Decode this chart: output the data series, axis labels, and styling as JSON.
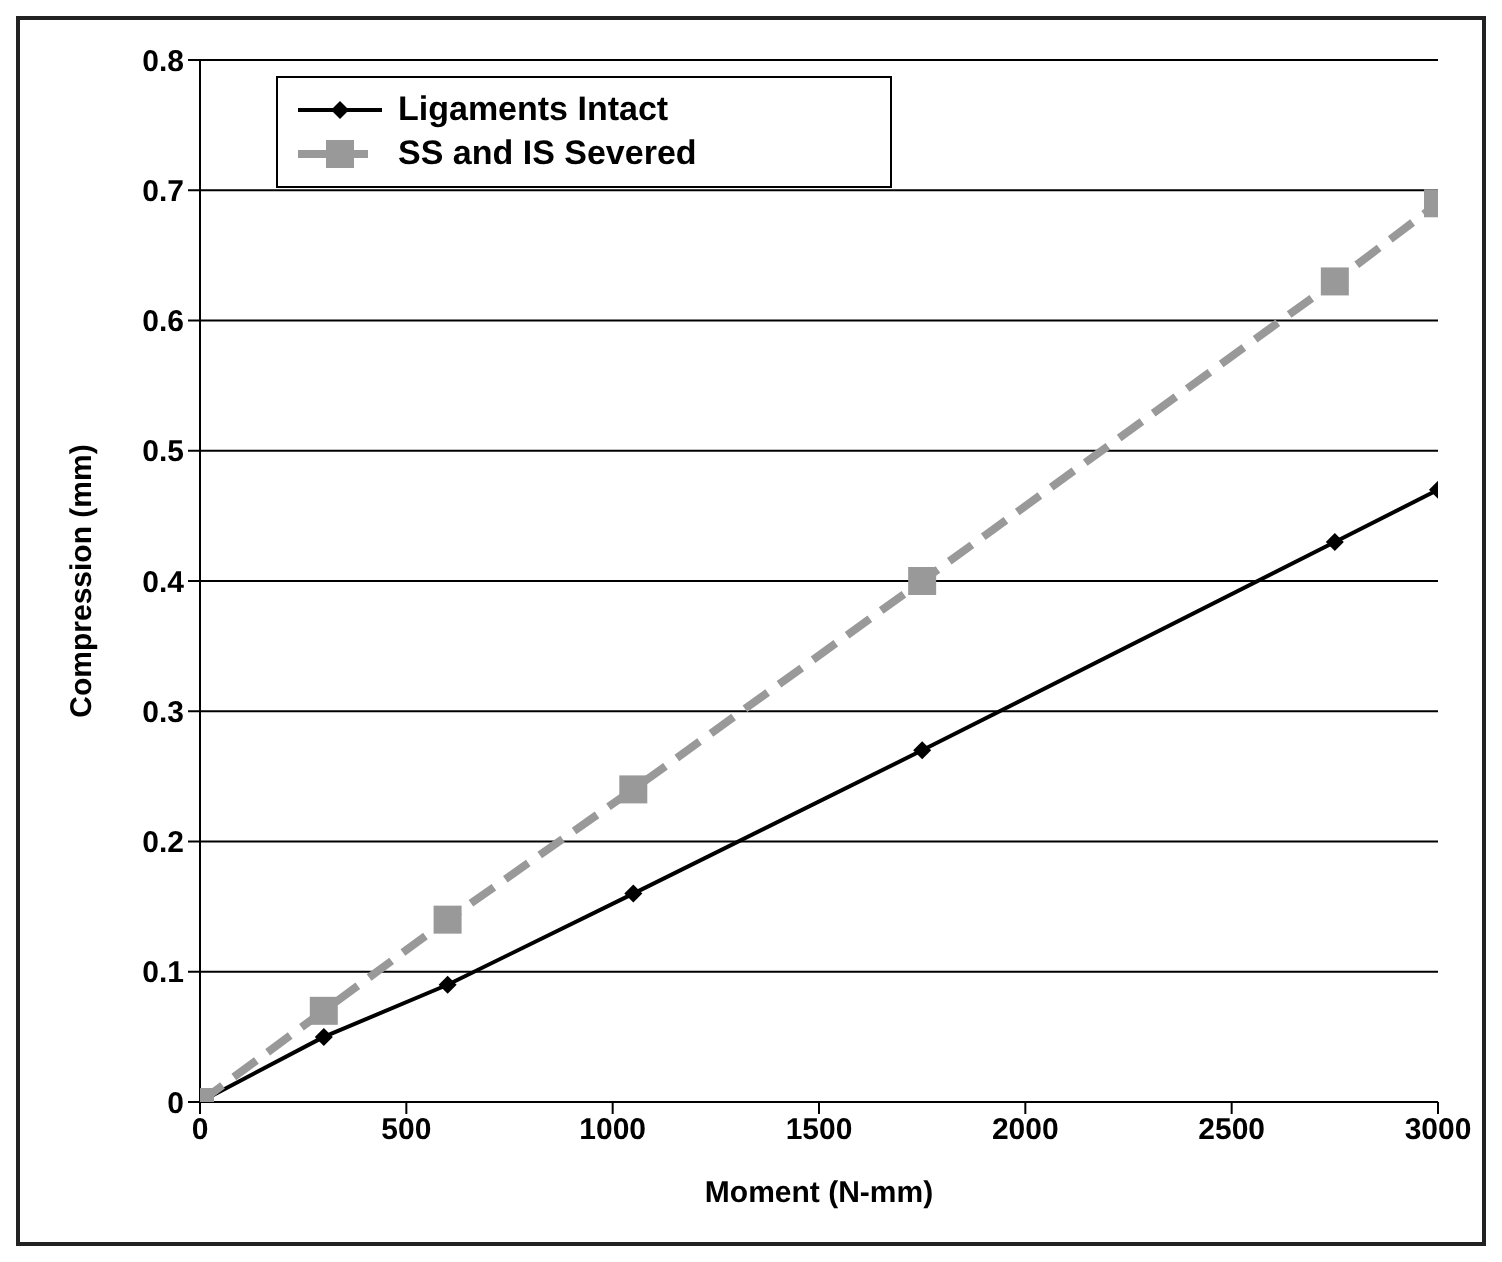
{
  "chart_data": {
    "type": "line",
    "xlabel": "Moment (N-mm)",
    "ylabel": "Compression (mm)",
    "xlim": [
      0,
      3000
    ],
    "xticks": [
      0,
      500,
      1000,
      1500,
      2000,
      2500,
      3000
    ],
    "ylim": [
      0,
      0.8
    ],
    "yticks": [
      0,
      0.1,
      0.2,
      0.3,
      0.4,
      0.5,
      0.6,
      0.7,
      0.8
    ],
    "grid": "y",
    "legend": "top left",
    "series": [
      {
        "name": "Ligaments Intact",
        "color": "#000000",
        "marker": "diamond",
        "line_style": "solid",
        "x": [
          0,
          300,
          600,
          1050,
          1750,
          2750,
          3000
        ],
        "values": [
          0,
          0.05,
          0.09,
          0.16,
          0.27,
          0.43,
          0.47
        ]
      },
      {
        "name": "SS and IS Severed",
        "color": "#999999",
        "marker": "square",
        "line_style": "dashed",
        "x": [
          0,
          300,
          600,
          1050,
          1750,
          2750,
          3000
        ],
        "values": [
          0,
          0.07,
          0.14,
          0.24,
          0.4,
          0.63,
          0.69
        ]
      }
    ]
  }
}
